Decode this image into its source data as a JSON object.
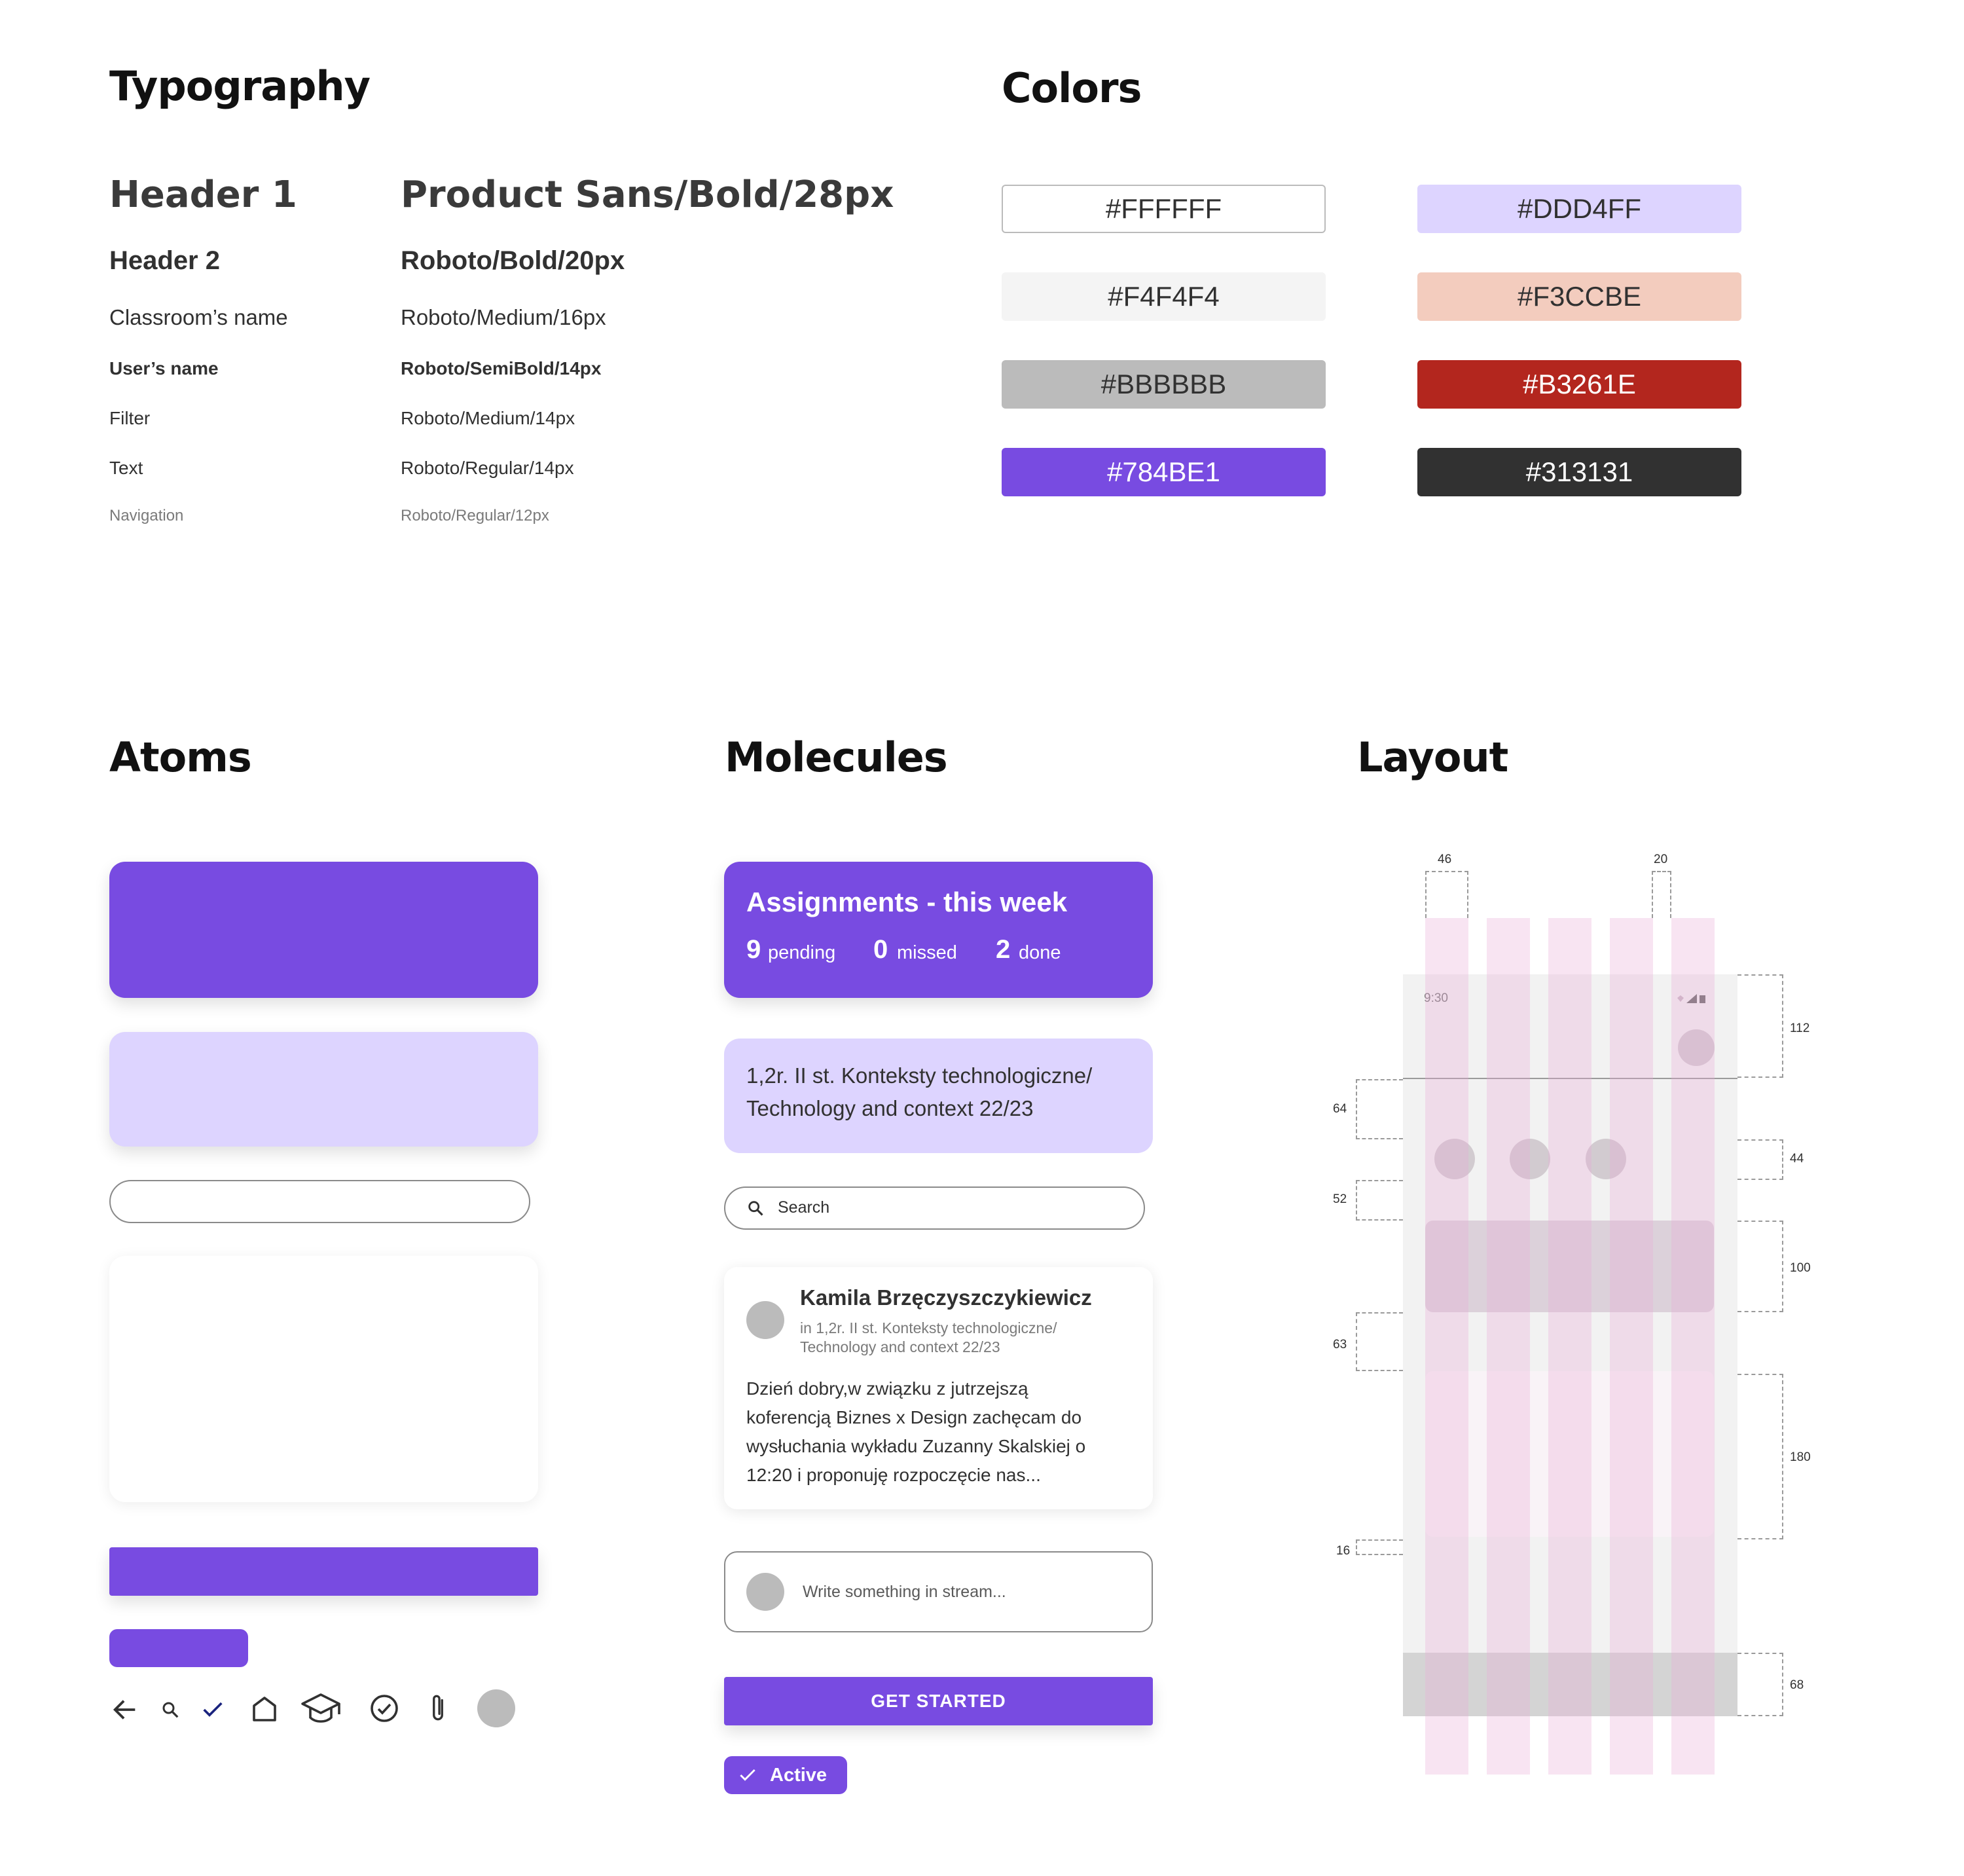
{
  "typography": {
    "title": "Typography",
    "rows": [
      {
        "label": "Header 1",
        "spec": "Product Sans/Bold/28px"
      },
      {
        "label": "Header 2",
        "spec": "Roboto/Bold/20px"
      },
      {
        "label": "Classroom’s name",
        "spec": "Roboto/Medium/16px"
      },
      {
        "label": "User’s name",
        "spec": "Roboto/SemiBold/14px"
      },
      {
        "label": "Filter",
        "spec": "Roboto/Medium/14px"
      },
      {
        "label": "Text",
        "spec": "Roboto/Regular/14px"
      },
      {
        "label": "Navigation",
        "spec": "Roboto/Regular/12px"
      }
    ]
  },
  "colors": {
    "title": "Colors",
    "swatches": [
      {
        "hex": "#FFFFFF"
      },
      {
        "hex": "#DDD4FF"
      },
      {
        "hex": "#F4F4F4"
      },
      {
        "hex": "#F3CCBE"
      },
      {
        "hex": "#BBBBBB"
      },
      {
        "hex": "#B3261E"
      },
      {
        "hex": "#784BE1"
      },
      {
        "hex": "#313131"
      }
    ]
  },
  "atoms": {
    "title": "Atoms",
    "icons": [
      "arrow-back-icon",
      "search-icon",
      "check-icon",
      "home-icon",
      "graduation-cap-icon",
      "check-circle-icon",
      "paperclip-icon",
      "avatar-placeholder-icon"
    ]
  },
  "molecules": {
    "title": "Molecules",
    "summary": {
      "title": "Assignments - this week",
      "stats": [
        {
          "num": "9",
          "label": "pending"
        },
        {
          "num": "0",
          "label": "missed"
        },
        {
          "num": "2",
          "label": "done"
        }
      ]
    },
    "classroom": {
      "line1": "1,2r. II st. Konteksty technologiczne/",
      "line2": "Technology and context 22/23"
    },
    "search": {
      "placeholder": "Search"
    },
    "post": {
      "author": "Kamila Brzęczyszczykiewicz",
      "context_line1": "in 1,2r. II st. Konteksty technologiczne/",
      "context_line2": "Technology and context 22/23",
      "body_line1": "Dzień dobry,w związku z jutrzejszą",
      "body_line2": "koferencją Biznes x Design zachęcam do",
      "body_line3": "wysłuchania wykładu Zuzanny Skalskiej o",
      "body_line4": "12:20 i proponuję rozpoczęcie nas..."
    },
    "composer": {
      "placeholder": "Write something in stream..."
    },
    "cta": "GET STARTED",
    "chip": "Active"
  },
  "layout": {
    "title": "Layout",
    "status_time": "9:30",
    "dims": {
      "top_left": "46",
      "top_right": "20",
      "header": "112",
      "left_64": "64",
      "right_44": "44",
      "left_52": "52",
      "right_100": "100",
      "left_63": "63",
      "right_180": "180",
      "left_16": "16",
      "right_68": "68"
    }
  }
}
